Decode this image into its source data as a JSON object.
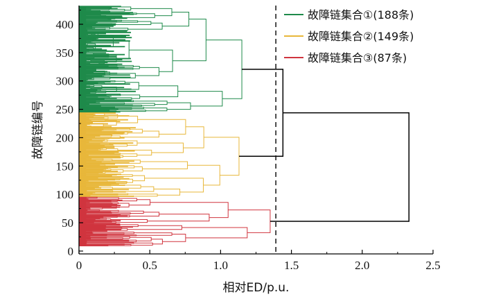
{
  "chart_data": {
    "type": "dendrogram",
    "xlabel": "相对ED/p.u.",
    "ylabel": "故障链编号",
    "xlim": [
      0,
      2.5
    ],
    "ylim": [
      -5,
      433
    ],
    "x_ticks": [
      0,
      0.5,
      1.0,
      1.5,
      2.0,
      2.5
    ],
    "x_tick_labels": [
      "0",
      "0.5",
      "1.0",
      "1.5",
      "2.0",
      "2.5"
    ],
    "y_ticks": [
      0,
      50,
      100,
      150,
      200,
      250,
      300,
      350,
      400
    ],
    "y_tick_labels": [
      "0",
      "50",
      "100",
      "150",
      "200",
      "250",
      "300",
      "350",
      "400"
    ],
    "cut_threshold": 1.39,
    "series": [
      {
        "name": "故障链集合①(188条)",
        "color": "#1e8a4a",
        "leaf_range": [
          245,
          432
        ],
        "max_height": 1.15
      },
      {
        "name": "故障链集合②(149条)",
        "color": "#e8b73a",
        "leaf_range": [
          96,
          244
        ],
        "max_height": 1.13
      },
      {
        "name": "故障链集合③(87条)",
        "color": "#d0343e",
        "leaf_range": [
          9,
          95
        ],
        "max_height": 1.35
      }
    ],
    "top_merges": [
      {
        "children": [
          "集合①",
          "集合②"
        ],
        "height": 1.44
      },
      {
        "children": [
          "集合①②",
          "集合③"
        ],
        "height": 2.33
      }
    ],
    "legend_position": "top-right"
  }
}
